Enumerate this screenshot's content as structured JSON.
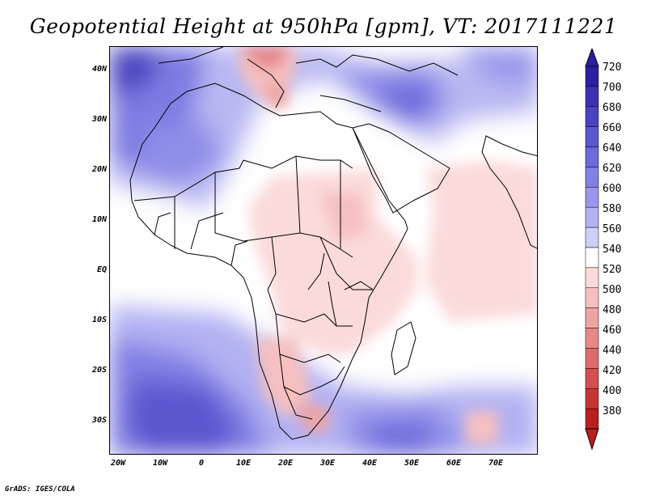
{
  "title": "Geopotential Height at 950hPa [gpm], VT: 2017111221",
  "credit": "GrADS: IGES/COLA",
  "map": {
    "lat_ticks": [
      "40N",
      "30N",
      "20N",
      "10N",
      "EQ",
      "10S",
      "20S",
      "30S"
    ],
    "lon_ticks": [
      "20W",
      "10W",
      "0",
      "10E",
      "20E",
      "30E",
      "40E",
      "50E",
      "60E",
      "70E"
    ]
  },
  "colorbar": {
    "labels": [
      "720",
      "700",
      "680",
      "660",
      "640",
      "620",
      "600",
      "580",
      "560",
      "540",
      "520",
      "500",
      "480",
      "460",
      "440",
      "420",
      "400",
      "380"
    ],
    "colors": [
      "#2a1f9e",
      "#3a32b0",
      "#4a44c0",
      "#5b57cf",
      "#6d6adb",
      "#8180e4",
      "#9897eb",
      "#b2b1f2",
      "#cfcff8",
      "#ffffff",
      "#fbdada",
      "#f6c0c0",
      "#efa4a4",
      "#e78888",
      "#dd6c6c",
      "#d35050",
      "#c73636",
      "#b82020"
    ]
  }
}
